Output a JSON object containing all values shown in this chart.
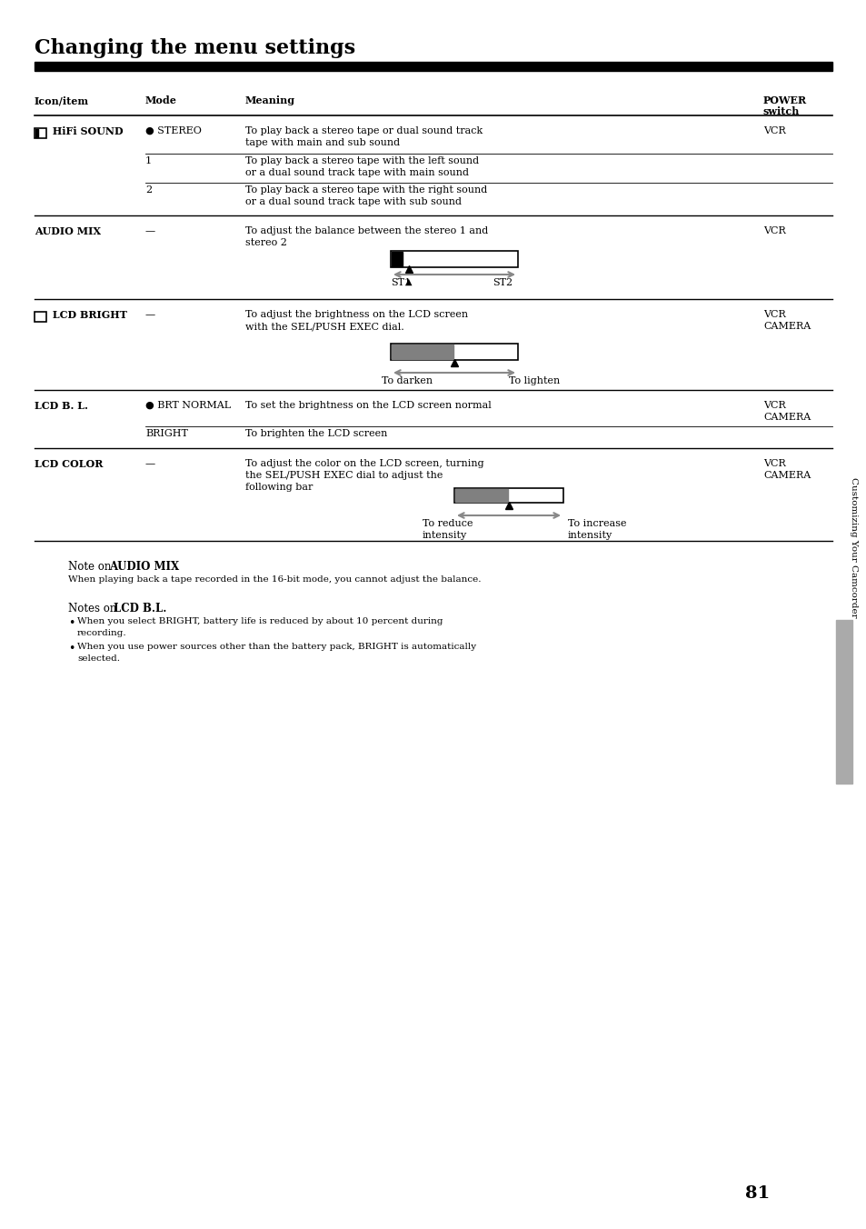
{
  "title": "Changing the menu settings",
  "page_number": "81",
  "sidebar_text": "Customizing Your Camcorder",
  "bg_color": "#ffffff",
  "text_color": "#000000",
  "gray_color": "#808080",
  "header_cols": [
    "Icon/item",
    "Mode",
    "Meaning",
    "POWER\nswitch"
  ],
  "rows": [
    {
      "icon_item": "HiFi SOUND",
      "has_icon": true,
      "mode": "● STEREO",
      "meaning": "To play back a stereo tape or dual sound track\ntape with main and sub sound",
      "power": "VCR",
      "sub_rows": [
        {
          "mode": "1",
          "meaning": "To play back a stereo tape with the left sound\nor a dual sound track tape with main sound",
          "power": ""
        },
        {
          "mode": "2",
          "meaning": "To play back a stereo tape with the right sound\nor a dual sound track tape with sub sound",
          "power": ""
        }
      ]
    },
    {
      "icon_item": "AUDIO MIX",
      "has_icon": false,
      "mode": "—",
      "meaning": "To adjust the balance between the stereo 1 and\nstereo 2",
      "power": "VCR",
      "sub_rows": [],
      "has_audiomix_diagram": true
    },
    {
      "icon_item": "LCD BRIGHT",
      "has_icon": true,
      "mode": "—",
      "meaning": "To adjust the brightness on the LCD screen\nwith the SEL/PUSH EXEC dial.",
      "power": "VCR\nCAMERA",
      "sub_rows": [],
      "has_lcdbrightness_diagram": true
    },
    {
      "icon_item": "LCD B. L.",
      "has_icon": false,
      "mode": "● BRT NORMAL",
      "meaning": "To set the brightness on the LCD screen normal",
      "power": "VCR\nCAMERA",
      "sub_rows": [
        {
          "mode": "BRIGHT",
          "meaning": "To brighten the LCD screen",
          "power": ""
        }
      ]
    },
    {
      "icon_item": "LCD COLOR",
      "has_icon": false,
      "mode": "—",
      "meaning": "To adjust the color on the LCD screen, turning\nthe SEL/PUSH EXEC dial to adjust the\nfollowing bar",
      "power": "VCR\nCAMERA",
      "sub_rows": [],
      "has_lcdcolor_diagram": true
    }
  ],
  "note_title1": "Note on AUDIO MIX",
  "note_body1": "When playing back a tape recorded in the 16-bit mode, you cannot adjust the balance.",
  "note_title2": "Notes on LCD B.L.",
  "note_body2_bullets": [
    "When you select BRIGHT, battery life is reduced by about 10 percent during\nrecording.",
    "When you use power sources other than the battery pack, BRIGHT is automatically\nselected."
  ]
}
